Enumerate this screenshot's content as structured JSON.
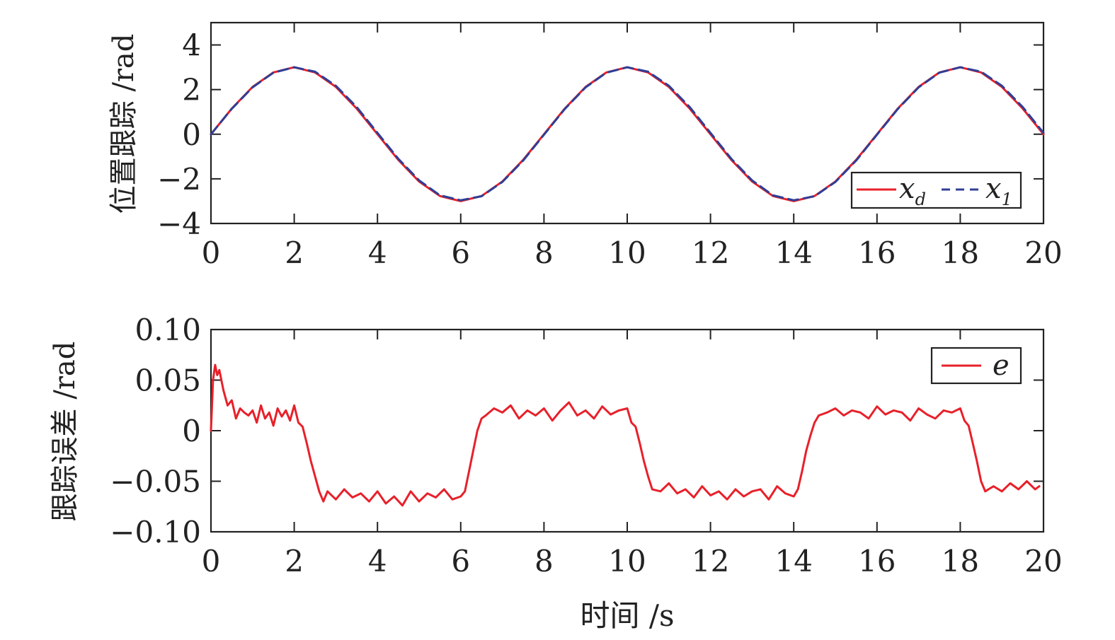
{
  "chart_data": [
    {
      "type": "line",
      "ylabel": "位置跟踪 /rad",
      "xlabel": "",
      "xlim": [
        0,
        20
      ],
      "ylim": [
        -4,
        5
      ],
      "xticks": [
        "0",
        "2",
        "4",
        "6",
        "8",
        "10",
        "12",
        "14",
        "16",
        "18",
        "20"
      ],
      "yticks": [
        "4",
        "2",
        "0",
        "−2",
        "−4"
      ],
      "legend": {
        "placement": "bottom-right",
        "entries": [
          "x_d",
          "x_1"
        ]
      },
      "series": [
        {
          "name": "x_d",
          "color": "#e8202a",
          "style": "solid",
          "x": [
            0,
            0.5,
            1,
            1.5,
            2,
            2.5,
            3,
            3.5,
            4,
            4.5,
            5,
            5.5,
            6,
            6.5,
            7,
            7.5,
            8,
            8.5,
            9,
            9.5,
            10,
            10.5,
            11,
            11.5,
            12,
            12.5,
            13,
            13.5,
            14,
            14.5,
            15,
            15.5,
            16,
            16.5,
            17,
            17.5,
            18,
            18.5,
            19,
            19.5,
            20
          ],
          "y": [
            0,
            1.15,
            2.12,
            2.77,
            3.0,
            2.77,
            2.12,
            1.15,
            0,
            -1.15,
            -2.12,
            -2.77,
            -3.0,
            -2.77,
            -2.12,
            -1.15,
            0,
            1.15,
            2.12,
            2.77,
            3.0,
            2.77,
            2.12,
            1.15,
            0,
            -1.15,
            -2.12,
            -2.77,
            -3.0,
            -2.77,
            -2.12,
            -1.15,
            0,
            1.15,
            2.12,
            2.77,
            3.0,
            2.77,
            2.12,
            1.15,
            0
          ]
        },
        {
          "name": "x_1",
          "color": "#2e3f95",
          "style": "dashed",
          "x": [
            0,
            0.5,
            1,
            1.5,
            2,
            2.5,
            3,
            3.5,
            4,
            4.5,
            5,
            5.5,
            6,
            6.5,
            7,
            7.5,
            8,
            8.5,
            9,
            9.5,
            10,
            10.5,
            11,
            11.5,
            12,
            12.5,
            13,
            13.5,
            14,
            14.5,
            15,
            15.5,
            16,
            16.5,
            17,
            17.5,
            18,
            18.5,
            19,
            19.5,
            20
          ],
          "y": [
            0,
            1.14,
            2.1,
            2.76,
            3.0,
            2.8,
            2.17,
            1.22,
            0.06,
            -1.1,
            -2.07,
            -2.74,
            -2.96,
            -2.78,
            -2.14,
            -1.18,
            -0.02,
            1.13,
            2.1,
            2.76,
            3.0,
            2.8,
            2.17,
            1.22,
            0.06,
            -1.1,
            -2.07,
            -2.74,
            -2.96,
            -2.78,
            -2.14,
            -1.18,
            -0.02,
            1.13,
            2.1,
            2.76,
            3.0,
            2.8,
            2.17,
            1.22,
            0.06
          ]
        }
      ]
    },
    {
      "type": "line",
      "ylabel": "跟踪误差 /rad",
      "xlabel": "时间 /s",
      "xlim": [
        0,
        20
      ],
      "ylim": [
        -0.1,
        0.1
      ],
      "xticks": [
        "0",
        "2",
        "4",
        "6",
        "8",
        "10",
        "12",
        "14",
        "16",
        "18",
        "20"
      ],
      "yticks": [
        "0.10",
        "0.05",
        "0",
        "−0.05",
        "−0.10"
      ],
      "legend": {
        "placement": "top-right",
        "entries": [
          "e"
        ]
      },
      "series": [
        {
          "name": "e",
          "color": "#e8202a",
          "style": "solid",
          "x": [
            0,
            0.05,
            0.1,
            0.15,
            0.2,
            0.3,
            0.4,
            0.5,
            0.6,
            0.7,
            0.8,
            0.9,
            1.0,
            1.1,
            1.2,
            1.3,
            1.4,
            1.5,
            1.6,
            1.7,
            1.8,
            1.9,
            2.0,
            2.1,
            2.2,
            2.3,
            2.4,
            2.5,
            2.6,
            2.7,
            2.8,
            3.0,
            3.2,
            3.4,
            3.6,
            3.8,
            4.0,
            4.2,
            4.4,
            4.6,
            4.8,
            5.0,
            5.2,
            5.4,
            5.6,
            5.8,
            6.0,
            6.1,
            6.2,
            6.3,
            6.4,
            6.5,
            6.6,
            6.8,
            7.0,
            7.2,
            7.4,
            7.6,
            7.8,
            8.0,
            8.2,
            8.4,
            8.6,
            8.8,
            9.0,
            9.2,
            9.4,
            9.6,
            9.8,
            10.0,
            10.1,
            10.2,
            10.3,
            10.4,
            10.5,
            10.6,
            10.8,
            11.0,
            11.2,
            11.4,
            11.6,
            11.8,
            12.0,
            12.2,
            12.4,
            12.6,
            12.8,
            13.0,
            13.2,
            13.4,
            13.6,
            13.8,
            14.0,
            14.1,
            14.2,
            14.3,
            14.4,
            14.5,
            14.6,
            14.8,
            15.0,
            15.2,
            15.4,
            15.6,
            15.8,
            16.0,
            16.2,
            16.4,
            16.6,
            16.8,
            17.0,
            17.2,
            17.4,
            17.6,
            17.8,
            18.0,
            18.1,
            18.2,
            18.3,
            18.4,
            18.5,
            18.6,
            18.8,
            19.0,
            19.2,
            19.4,
            19.6,
            19.8,
            19.9
          ],
          "y": [
            0,
            0.05,
            0.065,
            0.055,
            0.06,
            0.04,
            0.025,
            0.03,
            0.012,
            0.022,
            0.018,
            0.015,
            0.02,
            0.008,
            0.025,
            0.012,
            0.018,
            0.005,
            0.022,
            0.014,
            0.02,
            0.01,
            0.025,
            0.008,
            0.004,
            -0.012,
            -0.03,
            -0.045,
            -0.06,
            -0.07,
            -0.06,
            -0.068,
            -0.058,
            -0.066,
            -0.062,
            -0.07,
            -0.06,
            -0.072,
            -0.065,
            -0.074,
            -0.06,
            -0.07,
            -0.062,
            -0.066,
            -0.058,
            -0.068,
            -0.065,
            -0.06,
            -0.04,
            -0.02,
            0.0,
            0.012,
            0.015,
            0.022,
            0.018,
            0.025,
            0.012,
            0.02,
            0.015,
            0.022,
            0.01,
            0.02,
            0.028,
            0.015,
            0.02,
            0.012,
            0.024,
            0.016,
            0.02,
            0.022,
            0.008,
            0.004,
            -0.012,
            -0.03,
            -0.045,
            -0.058,
            -0.06,
            -0.052,
            -0.062,
            -0.058,
            -0.066,
            -0.055,
            -0.064,
            -0.06,
            -0.068,
            -0.058,
            -0.065,
            -0.06,
            -0.058,
            -0.068,
            -0.055,
            -0.062,
            -0.065,
            -0.058,
            -0.04,
            -0.02,
            -0.005,
            0.008,
            0.015,
            0.018,
            0.022,
            0.015,
            0.02,
            0.018,
            0.012,
            0.024,
            0.016,
            0.02,
            0.018,
            0.01,
            0.022,
            0.016,
            0.012,
            0.02,
            0.018,
            0.022,
            0.01,
            0.005,
            -0.012,
            -0.03,
            -0.05,
            -0.06,
            -0.055,
            -0.06,
            -0.052,
            -0.058,
            -0.05,
            -0.058,
            -0.055
          ]
        }
      ]
    }
  ]
}
